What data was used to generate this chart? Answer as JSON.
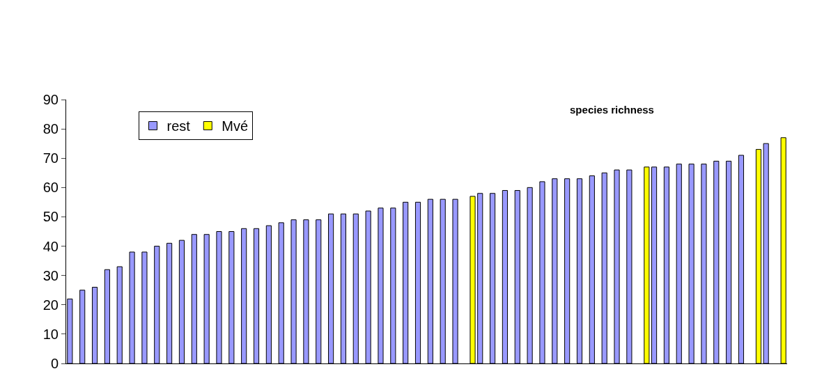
{
  "chart_data": {
    "type": "bar",
    "title": "species richness",
    "categories": [
      null,
      null,
      null,
      null,
      null,
      null,
      null,
      null,
      null,
      null,
      null,
      null,
      null,
      null,
      null,
      null,
      null,
      null,
      null,
      null,
      null,
      null,
      null,
      null,
      null,
      null,
      null,
      null,
      null,
      null,
      null,
      null,
      null,
      null,
      null,
      null,
      null,
      null,
      null,
      null,
      null,
      null,
      null,
      null,
      null,
      null,
      null,
      null,
      null,
      null,
      null,
      null,
      null,
      null,
      null,
      null,
      null,
      null
    ],
    "series": [
      {
        "name": "rest",
        "color": "#9999ff",
        "values": [
          22,
          25,
          26,
          32,
          33,
          38,
          38,
          40,
          41,
          42,
          44,
          44,
          45,
          45,
          46,
          46,
          47,
          48,
          49,
          49,
          49,
          51,
          51,
          51,
          52,
          53,
          53,
          55,
          55,
          56,
          56,
          56,
          null,
          58,
          58,
          59,
          59,
          60,
          62,
          63,
          63,
          63,
          64,
          65,
          66,
          66,
          null,
          67,
          67,
          68,
          68,
          68,
          69,
          69,
          71,
          null,
          75,
          null
        ]
      },
      {
        "name": "Mvé",
        "color": "#ffff00",
        "values": [
          null,
          null,
          null,
          null,
          null,
          null,
          null,
          null,
          null,
          null,
          null,
          null,
          null,
          null,
          null,
          null,
          null,
          null,
          null,
          null,
          null,
          null,
          null,
          null,
          null,
          null,
          null,
          null,
          null,
          null,
          null,
          null,
          57,
          null,
          null,
          null,
          null,
          null,
          null,
          null,
          null,
          null,
          null,
          null,
          null,
          null,
          67,
          null,
          null,
          null,
          null,
          null,
          null,
          null,
          null,
          73,
          null,
          77
        ]
      }
    ],
    "ylim": [
      0,
      90
    ],
    "yticks": [
      0,
      10,
      20,
      30,
      40,
      50,
      60,
      70,
      80,
      90
    ],
    "legend": "top left",
    "tick_labels": "y"
  }
}
